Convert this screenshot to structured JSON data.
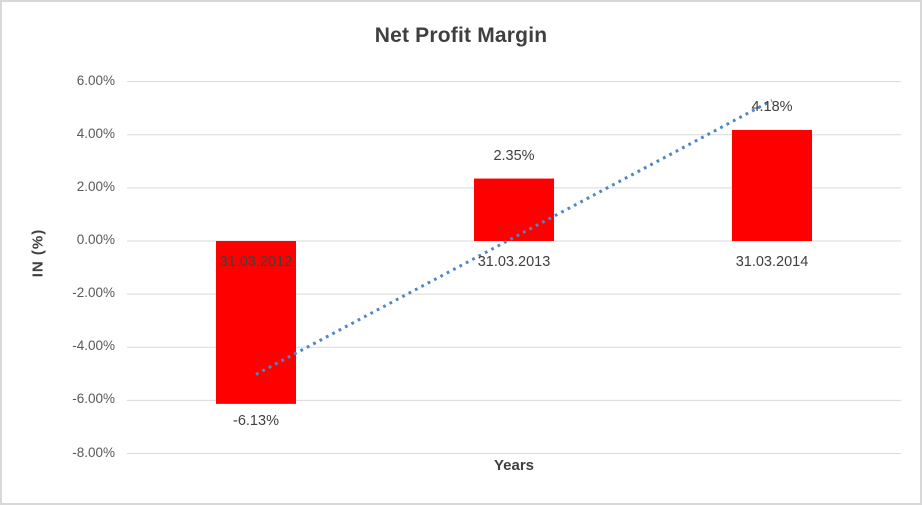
{
  "window": {
    "background": "#FFFFFF",
    "border_color": "#D8D8D8"
  },
  "chart_data": {
    "type": "bar",
    "title": "Net Profit Margin",
    "xlabel": "Years",
    "ylabel": "IN (%)",
    "categories": [
      "31.03.2012",
      "31.03.2013",
      "31.03.2014"
    ],
    "series": [
      {
        "name": "Net Profit Margin",
        "values": [
          -6.13,
          2.35,
          4.18
        ],
        "data_labels": [
          "-6.13%",
          "2.35%",
          "4.18%"
        ],
        "color": "#FF0000"
      }
    ],
    "y_axis": {
      "min": -8,
      "max": 6,
      "tick_values": [
        6,
        4,
        2,
        0,
        -2,
        -4,
        -6,
        -8
      ],
      "tick_labels": [
        "6.00%",
        "4.00%",
        "2.00%",
        "0.00%",
        "-2.00%",
        "-4.00%",
        "-6.00%",
        "-8.00%"
      ]
    },
    "grid": true,
    "legend": "none",
    "gridline_color": "#D9D9D9",
    "text_color": "#404040",
    "tick_text_color": "#595959",
    "trendline": {
      "kind": "linear",
      "style": "dotted",
      "color": "#4E87C6",
      "start_value": -5.02,
      "end_value": 5.29
    }
  }
}
